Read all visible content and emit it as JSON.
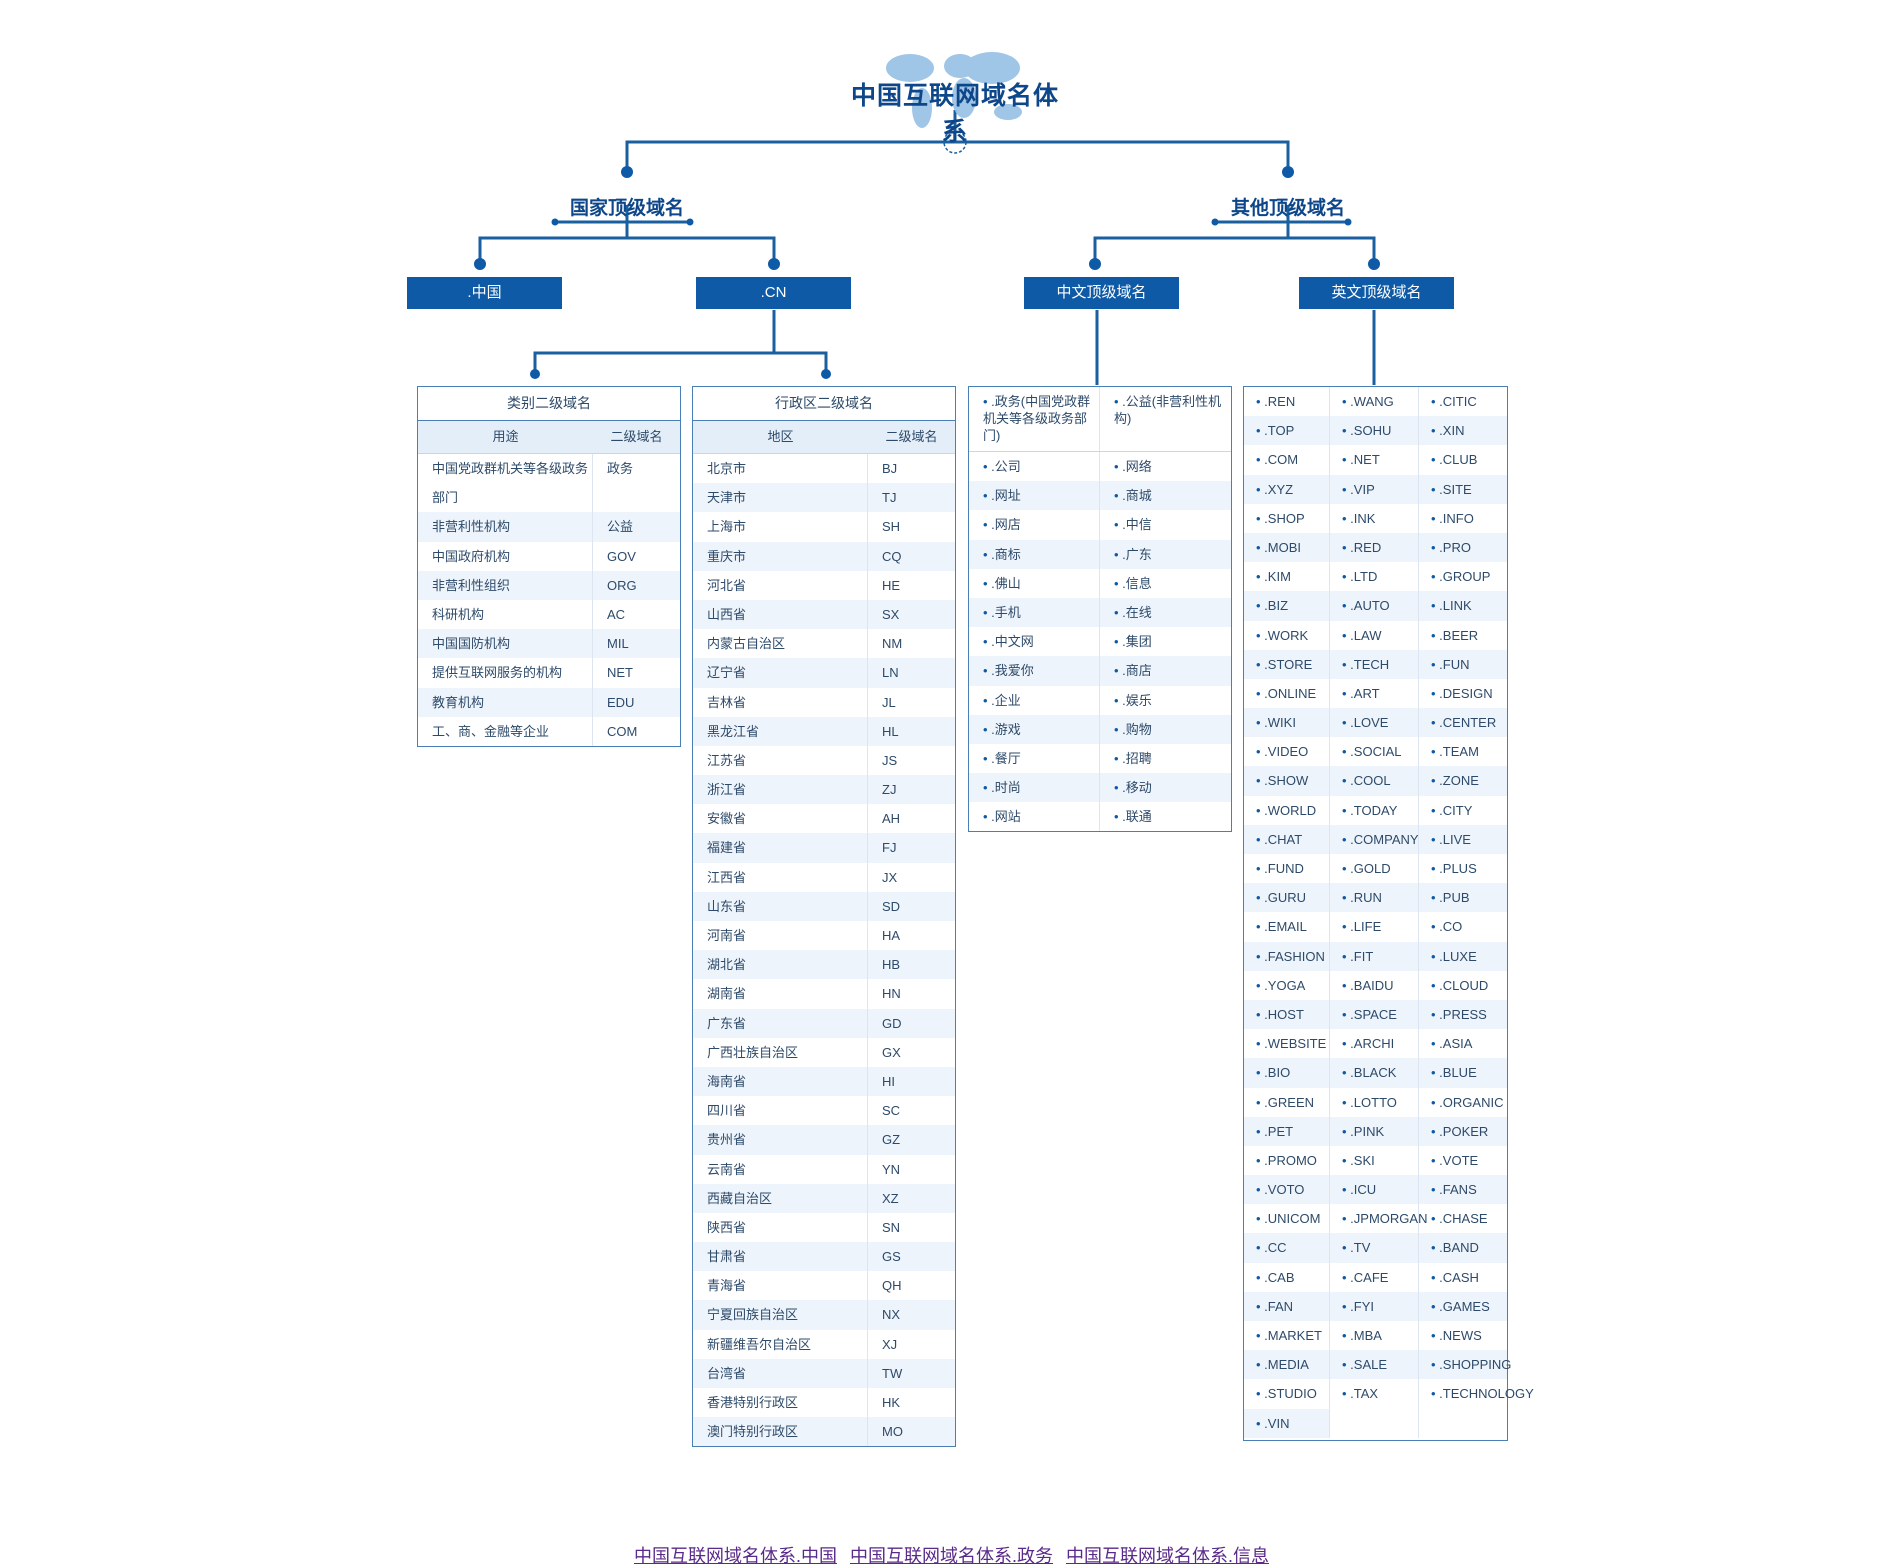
{
  "title": "中国互联网域名体系",
  "branches": {
    "national": "国家顶级域名",
    "other": "其他顶级域名"
  },
  "boxes": {
    "zhongguo": ".中国",
    "cn": ".CN",
    "cn_chinese": "中文顶级域名",
    "english": "英文顶级域名"
  },
  "category_table": {
    "title": "类别二级域名",
    "col1": "用途",
    "col2": "二级域名",
    "rows": [
      {
        "use": "中国党政群机关等各级政务部门",
        "domain": "政务"
      },
      {
        "use": "非营利性机构",
        "domain": "公益"
      },
      {
        "use": "中国政府机构",
        "domain": "GOV"
      },
      {
        "use": "非营利性组织",
        "domain": "ORG"
      },
      {
        "use": "科研机构",
        "domain": "AC"
      },
      {
        "use": "中国国防机构",
        "domain": "MIL"
      },
      {
        "use": "提供互联网服务的机构",
        "domain": "NET"
      },
      {
        "use": "教育机构",
        "domain": "EDU"
      },
      {
        "use": "工、商、金融等企业",
        "domain": "COM"
      }
    ]
  },
  "region_table": {
    "title": "行政区二级域名",
    "col1": "地区",
    "col2": "二级域名",
    "rows": [
      {
        "region": "北京市",
        "code": "BJ"
      },
      {
        "region": "天津市",
        "code": "TJ"
      },
      {
        "region": "上海市",
        "code": "SH"
      },
      {
        "region": "重庆市",
        "code": "CQ"
      },
      {
        "region": "河北省",
        "code": "HE"
      },
      {
        "region": "山西省",
        "code": "SX"
      },
      {
        "region": "内蒙古自治区",
        "code": "NM"
      },
      {
        "region": "辽宁省",
        "code": "LN"
      },
      {
        "region": "吉林省",
        "code": "JL"
      },
      {
        "region": "黑龙江省",
        "code": "HL"
      },
      {
        "region": "江苏省",
        "code": "JS"
      },
      {
        "region": "浙江省",
        "code": "ZJ"
      },
      {
        "region": "安徽省",
        "code": "AH"
      },
      {
        "region": "福建省",
        "code": "FJ"
      },
      {
        "region": "江西省",
        "code": "JX"
      },
      {
        "region": "山东省",
        "code": "SD"
      },
      {
        "region": "河南省",
        "code": "HA"
      },
      {
        "region": "湖北省",
        "code": "HB"
      },
      {
        "region": "湖南省",
        "code": "HN"
      },
      {
        "region": "广东省",
        "code": "GD"
      },
      {
        "region": "广西壮族自治区",
        "code": "GX"
      },
      {
        "region": "海南省",
        "code": "HI"
      },
      {
        "region": "四川省",
        "code": "SC"
      },
      {
        "region": "贵州省",
        "code": "GZ"
      },
      {
        "region": "云南省",
        "code": "YN"
      },
      {
        "region": "西藏自治区",
        "code": "XZ"
      },
      {
        "region": "陕西省",
        "code": "SN"
      },
      {
        "region": "甘肃省",
        "code": "GS"
      },
      {
        "region": "青海省",
        "code": "QH"
      },
      {
        "region": "宁夏回族自治区",
        "code": "NX"
      },
      {
        "region": "新疆维吾尔自治区",
        "code": "XJ"
      },
      {
        "region": "台湾省",
        "code": "TW"
      },
      {
        "region": "香港特别行政区",
        "code": "HK"
      },
      {
        "region": "澳门特别行政区",
        "code": "MO"
      }
    ]
  },
  "chinese_tlds": {
    "first": [
      ".政务(中国党政群机关等各级政务部门)",
      ".公益(非营利性机构)"
    ],
    "pairs": [
      [
        ".公司",
        ".网络"
      ],
      [
        ".网址",
        ".商城"
      ],
      [
        ".网店",
        ".中信"
      ],
      [
        ".商标",
        ".广东"
      ],
      [
        ".佛山",
        ".信息"
      ],
      [
        ".手机",
        ".在线"
      ],
      [
        ".中文网",
        ".集团"
      ],
      [
        ".我爱你",
        ".商店"
      ],
      [
        ".企业",
        ".娱乐"
      ],
      [
        ".游戏",
        ".购物"
      ],
      [
        ".餐厅",
        ".招聘"
      ],
      [
        ".时尚",
        ".移动"
      ],
      [
        ".网站",
        ".联通"
      ]
    ]
  },
  "english_tlds": {
    "col1": [
      ".REN",
      ".TOP",
      ".COM",
      ".XYZ",
      ".SHOP",
      ".MOBI",
      ".KIM",
      ".BIZ",
      ".WORK",
      ".STORE",
      ".ONLINE",
      ".WIKI",
      ".VIDEO",
      ".SHOW",
      ".WORLD",
      ".CHAT",
      ".FUND",
      ".GURU",
      ".EMAIL",
      ".FASHION",
      ".YOGA",
      ".HOST",
      ".WEBSITE",
      ".BIO",
      ".GREEN",
      ".PET",
      ".PROMO",
      ".VOTO",
      ".UNICOM",
      ".CC",
      ".CAB",
      ".FAN",
      ".MARKET",
      ".MEDIA",
      ".STUDIO",
      ".VIN"
    ],
    "col2": [
      ".WANG",
      ".SOHU",
      ".NET",
      ".VIP",
      ".INK",
      ".RED",
      ".LTD",
      ".AUTO",
      ".LAW",
      ".TECH",
      ".ART",
      ".LOVE",
      ".SOCIAL",
      ".COOL",
      ".TODAY",
      ".COMPANY",
      ".GOLD",
      ".RUN",
      ".LIFE",
      ".FIT",
      ".BAIDU",
      ".SPACE",
      ".ARCHI",
      ".BLACK",
      ".LOTTO",
      ".PINK",
      ".SKI",
      ".ICU",
      ".JPMORGAN",
      ".TV",
      ".CAFE",
      ".FYI",
      ".MBA",
      ".SALE",
      ".TAX"
    ],
    "col3": [
      ".CITIC",
      ".XIN",
      ".CLUB",
      ".SITE",
      ".INFO",
      ".PRO",
      ".GROUP",
      ".LINK",
      ".BEER",
      ".FUN",
      ".DESIGN",
      ".CENTER",
      ".TEAM",
      ".ZONE",
      ".CITY",
      ".LIVE",
      ".PLUS",
      ".PUB",
      ".CO",
      ".LUXE",
      ".CLOUD",
      ".PRESS",
      ".ASIA",
      ".BLUE",
      ".ORGANIC",
      ".POKER",
      ".VOTE",
      ".FANS",
      ".CHASE",
      ".BAND",
      ".CASH",
      ".GAMES",
      ".NEWS",
      ".SHOPPING",
      ".TECHNOLOGY"
    ]
  },
  "footer_links": [
    "中国互联网域名体系.中国",
    "中国互联网域名体系.政务",
    "中国互联网域名体系.信息"
  ],
  "colors": {
    "primary": "#0e5aa6",
    "line": "#1a5fa0",
    "stripe": "#eef4fb"
  }
}
